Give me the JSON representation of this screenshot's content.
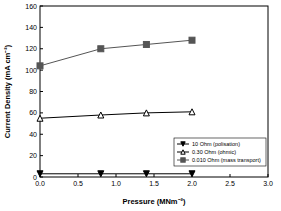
{
  "chart_data": {
    "type": "line",
    "x_label": "Pressure (MNm⁻²)",
    "y_label": "Current Density (mA cm⁻²)",
    "xlim": [
      0,
      3
    ],
    "xticks": [
      {
        "value": 0,
        "label": "0.0"
      },
      {
        "value": 0.5,
        "label": "0.5"
      },
      {
        "value": 1,
        "label": "1.0"
      },
      {
        "value": 1.5,
        "label": "1.5"
      },
      {
        "value": 2,
        "label": "2.0"
      },
      {
        "value": 2.5,
        "label": "2.5"
      },
      {
        "value": 3,
        "label": "3.0"
      }
    ],
    "ylim": [
      0,
      160
    ],
    "yticks": [
      0,
      20,
      40,
      60,
      80,
      100,
      120,
      140,
      160
    ],
    "grid": false,
    "legend": "lower right",
    "series": [
      {
        "name": "10 Ohm (polisation)",
        "color": "#000000",
        "marker": "triangle-down",
        "line_style": "solid",
        "x": [
          0,
          0.8,
          1.4,
          2.0
        ],
        "values": [
          3,
          3,
          3,
          3
        ]
      },
      {
        "name": "0.30 Ohm (ohmic)",
        "color": "#000000",
        "marker": "open-triangle-up",
        "line_style": "solid",
        "x": [
          0,
          0.8,
          1.4,
          2.0
        ],
        "values": [
          55,
          58,
          60,
          61
        ]
      },
      {
        "name": "0.010 Ohm (mass transport)",
        "color": "#555555",
        "marker": "square",
        "line_style": "solid",
        "x": [
          0,
          0.8,
          1.4,
          2.0
        ],
        "values": [
          104,
          120,
          124,
          128
        ]
      }
    ]
  }
}
